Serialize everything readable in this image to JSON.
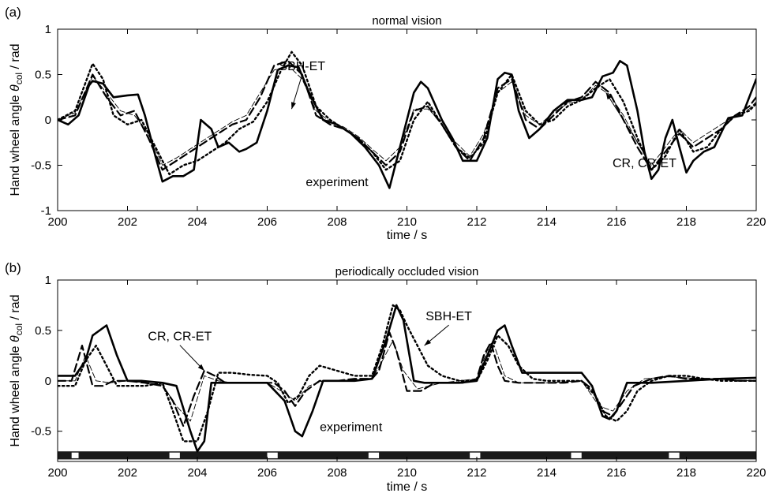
{
  "chart_data": [
    {
      "type": "line",
      "panel_label": "(a)",
      "title": "normal vision",
      "xlabel": "time / s",
      "ylabel": "Hand wheel angle",
      "ylabel_symbol": "θ",
      "ylabel_subscript": "col",
      "ylabel_unit": "/ rad",
      "xlim": [
        200,
        220
      ],
      "ylim": [
        -1,
        1
      ],
      "xticks": [
        200,
        202,
        204,
        206,
        208,
        210,
        212,
        214,
        216,
        218,
        220
      ],
      "yticks": [
        -1,
        -0.5,
        0,
        0.5,
        1
      ],
      "ytick_labels": [
        "-1",
        "-0.5",
        "0",
        "0.5",
        "1"
      ],
      "grid": false,
      "annotations": [
        {
          "text": "SBH-ET",
          "x": 207.0,
          "y": 0.55,
          "arrow_to": [
            206.7,
            0.12
          ]
        },
        {
          "text": "CR, CR-ET",
          "x": 216.8,
          "y": -0.52,
          "arrow_to": [
            215.7,
            0.3
          ]
        },
        {
          "text": "experiment",
          "x": 208.0,
          "y": -0.73
        }
      ],
      "series": [
        {
          "style": "solid",
          "x": [
            200,
            200.3,
            200.6,
            200.9,
            201.0,
            201.3,
            201.6,
            202.0,
            202.3,
            202.5,
            202.8,
            203.0,
            203.3,
            203.6,
            203.9,
            204.1,
            204.4,
            204.6,
            204.9,
            205.2,
            205.4,
            205.7,
            206.0,
            206.3,
            206.6,
            206.9,
            207.2,
            207.6,
            208.0,
            208.4,
            208.8,
            209.2,
            209.5,
            209.8,
            210.2,
            210.4,
            210.6,
            211.0,
            211.3,
            211.6,
            212.0,
            212.3,
            212.6,
            212.8,
            213.0,
            213.2,
            213.5,
            213.8,
            214.2,
            214.6,
            215.0,
            215.3,
            215.6,
            215.9,
            216.1,
            216.3,
            216.6,
            216.8,
            217.0,
            217.2,
            217.4,
            217.6,
            217.8,
            218.0,
            218.2,
            218.5,
            218.8,
            219.2,
            219.6,
            220.0
          ],
          "y": [
            0.0,
            -0.05,
            0.05,
            0.38,
            0.43,
            0.4,
            0.25,
            0.27,
            0.28,
            0.05,
            -0.4,
            -0.68,
            -0.62,
            -0.62,
            -0.55,
            0.0,
            -0.1,
            -0.3,
            -0.25,
            -0.35,
            -0.32,
            -0.25,
            0.1,
            0.55,
            0.6,
            0.58,
            0.3,
            0.0,
            -0.05,
            -0.15,
            -0.3,
            -0.5,
            -0.75,
            -0.3,
            0.3,
            0.42,
            0.35,
            0.0,
            -0.2,
            -0.45,
            -0.45,
            -0.2,
            0.45,
            0.52,
            0.5,
            0.1,
            -0.2,
            -0.1,
            0.1,
            0.22,
            0.22,
            0.25,
            0.48,
            0.52,
            0.65,
            0.6,
            0.1,
            -0.35,
            -0.65,
            -0.55,
            -0.2,
            0.0,
            -0.3,
            -0.58,
            -0.45,
            -0.35,
            -0.3,
            0.02,
            0.05,
            0.45
          ]
        },
        {
          "style": "dashed",
          "x": [
            200,
            200.5,
            201.0,
            201.4,
            201.8,
            202.2,
            202.6,
            203.0,
            203.4,
            203.8,
            204.2,
            204.6,
            205.0,
            205.4,
            205.8,
            206.2,
            206.6,
            207.0,
            207.4,
            207.8,
            208.2,
            208.6,
            209.0,
            209.4,
            209.8,
            210.2,
            210.6,
            211.0,
            211.4,
            211.8,
            212.2,
            212.6,
            213.0,
            213.4,
            213.8,
            214.2,
            214.6,
            215.0,
            215.4,
            215.8,
            216.2,
            216.6,
            217.0,
            217.4,
            217.8,
            218.2,
            218.6,
            219.0,
            219.4,
            219.8,
            220.0
          ],
          "y": [
            0.0,
            0.05,
            0.5,
            0.25,
            0.05,
            0.1,
            -0.2,
            -0.55,
            -0.45,
            -0.35,
            -0.25,
            -0.15,
            -0.05,
            0.0,
            0.25,
            0.6,
            0.65,
            0.5,
            0.05,
            -0.05,
            -0.1,
            -0.2,
            -0.35,
            -0.5,
            -0.35,
            0.1,
            0.15,
            -0.05,
            -0.3,
            -0.45,
            -0.2,
            0.35,
            0.45,
            0.0,
            -0.1,
            0.05,
            0.2,
            0.25,
            0.42,
            0.3,
            0.0,
            -0.3,
            -0.55,
            -0.35,
            -0.15,
            -0.3,
            -0.2,
            -0.1,
            0.05,
            0.15,
            0.25
          ]
        },
        {
          "style": "dotted",
          "x": [
            200,
            200.5,
            201.0,
            201.3,
            201.6,
            202.0,
            202.4,
            202.8,
            203.2,
            203.6,
            204.0,
            204.4,
            204.8,
            205.2,
            205.6,
            206.0,
            206.4,
            206.7,
            207.0,
            207.4,
            207.8,
            208.2,
            208.6,
            209.0,
            209.4,
            209.8,
            210.2,
            210.6,
            211.0,
            211.4,
            211.8,
            212.2,
            212.6,
            213.0,
            213.4,
            213.8,
            214.2,
            214.6,
            215.0,
            215.4,
            215.8,
            216.2,
            216.6,
            217.0,
            217.4,
            217.8,
            218.2,
            218.6,
            219.0,
            219.4,
            219.8,
            220.0
          ],
          "y": [
            0.0,
            0.1,
            0.62,
            0.45,
            0.05,
            -0.05,
            0.0,
            -0.3,
            -0.6,
            -0.5,
            -0.45,
            -0.35,
            -0.25,
            -0.1,
            -0.02,
            0.2,
            0.55,
            0.75,
            0.6,
            0.15,
            0.0,
            -0.1,
            -0.2,
            -0.35,
            -0.55,
            -0.45,
            0.0,
            0.2,
            -0.05,
            -0.3,
            -0.42,
            -0.25,
            0.3,
            0.5,
            0.1,
            -0.05,
            0.0,
            0.15,
            0.22,
            0.35,
            0.45,
            0.2,
            -0.2,
            -0.55,
            -0.4,
            -0.1,
            -0.35,
            -0.3,
            -0.1,
            0.05,
            0.1,
            0.18
          ]
        },
        {
          "style": "thin",
          "x": [
            200,
            200.5,
            201.0,
            201.4,
            201.8,
            202.2,
            202.6,
            203.0,
            203.4,
            203.8,
            204.2,
            204.6,
            205.0,
            205.4,
            205.8,
            206.2,
            206.6,
            207.0,
            207.4,
            207.8,
            208.2,
            208.6,
            209.0,
            209.4,
            209.8,
            210.2,
            210.6,
            211.0,
            211.4,
            211.8,
            212.2,
            212.6,
            213.0,
            213.4,
            213.8,
            214.2,
            214.6,
            215.0,
            215.4,
            215.8,
            216.2,
            216.6,
            217.0,
            217.4,
            217.8,
            218.2,
            218.6,
            219.0,
            219.4,
            219.8,
            220.0
          ],
          "y": [
            0.0,
            0.08,
            0.48,
            0.3,
            0.1,
            0.05,
            -0.15,
            -0.5,
            -0.42,
            -0.32,
            -0.22,
            -0.12,
            -0.02,
            0.05,
            0.3,
            0.55,
            0.6,
            0.45,
            0.1,
            -0.02,
            -0.08,
            -0.18,
            -0.32,
            -0.45,
            -0.3,
            0.12,
            0.12,
            -0.02,
            -0.25,
            -0.4,
            -0.15,
            0.3,
            0.42,
            0.05,
            -0.05,
            0.08,
            0.18,
            0.22,
            0.38,
            0.28,
            0.05,
            -0.25,
            -0.5,
            -0.3,
            -0.1,
            -0.25,
            -0.15,
            -0.05,
            0.05,
            0.12,
            0.2
          ]
        }
      ]
    },
    {
      "type": "line",
      "panel_label": "(b)",
      "title": "periodically occluded vision",
      "xlabel": "time / s",
      "ylabel": "Hand wheel angle",
      "ylabel_symbol": "θ",
      "ylabel_subscript": "col",
      "ylabel_unit": "/ rad",
      "xlim": [
        200,
        220
      ],
      "ylim": [
        -0.8,
        1
      ],
      "xticks": [
        200,
        202,
        204,
        206,
        208,
        210,
        212,
        214,
        216,
        218,
        220
      ],
      "yticks": [
        -0.5,
        0,
        0.5,
        1
      ],
      "ytick_labels": [
        "-0.5",
        "0",
        "0.5",
        "1"
      ],
      "grid": false,
      "occlusion_bar": {
        "y_range": [
          -0.78,
          -0.7
        ],
        "open_windows": [
          [
            200.4,
            200.6
          ],
          [
            203.2,
            203.5
          ],
          [
            206.0,
            206.3
          ],
          [
            208.9,
            209.2
          ],
          [
            211.8,
            212.1
          ],
          [
            214.7,
            215.0
          ],
          [
            217.5,
            217.8
          ]
        ]
      },
      "annotations": [
        {
          "text": "CR, CR-ET",
          "x": 203.5,
          "y": 0.4,
          "arrow_to": [
            204.2,
            0.1
          ]
        },
        {
          "text": "SBH-ET",
          "x": 211.2,
          "y": 0.6,
          "arrow_to": [
            210.5,
            0.35
          ]
        },
        {
          "text": "experiment",
          "x": 208.4,
          "y": -0.5
        }
      ],
      "series": [
        {
          "style": "solid",
          "x": [
            200,
            200.5,
            200.8,
            201.0,
            201.4,
            201.7,
            202.0,
            202.4,
            203.0,
            203.4,
            203.8,
            204.0,
            204.2,
            204.4,
            204.8,
            205.5,
            206.0,
            206.5,
            206.8,
            207.0,
            207.3,
            207.6,
            208.0,
            208.5,
            209.0,
            209.4,
            209.7,
            209.9,
            210.2,
            210.5,
            211.0,
            211.5,
            212.0,
            212.3,
            212.6,
            212.8,
            213.0,
            213.3,
            214.0,
            214.5,
            215.0,
            215.3,
            215.6,
            215.8,
            216.0,
            216.3,
            217.0,
            218.0,
            219.0,
            220.0
          ],
          "y": [
            0.05,
            0.05,
            0.2,
            0.45,
            0.55,
            0.25,
            0.0,
            0.0,
            -0.02,
            -0.05,
            -0.5,
            -0.7,
            -0.6,
            -0.02,
            -0.02,
            -0.02,
            -0.02,
            -0.2,
            -0.5,
            -0.55,
            -0.3,
            0.0,
            0.0,
            0.0,
            0.02,
            0.4,
            0.75,
            0.6,
            0.0,
            -0.02,
            -0.02,
            -0.02,
            0.0,
            0.25,
            0.5,
            0.55,
            0.35,
            0.08,
            0.08,
            0.08,
            0.08,
            -0.05,
            -0.35,
            -0.38,
            -0.3,
            -0.02,
            -0.02,
            0.0,
            0.02,
            0.03
          ]
        },
        {
          "style": "dashed",
          "x": [
            200,
            200.4,
            200.7,
            201.0,
            201.3,
            201.6,
            202.0,
            202.5,
            203.0,
            203.3,
            203.6,
            203.9,
            204.2,
            204.5,
            204.8,
            205.2,
            205.8,
            206.2,
            206.5,
            206.8,
            207.1,
            207.5,
            208.0,
            208.5,
            209.0,
            209.2,
            209.5,
            209.7,
            210.0,
            210.4,
            210.8,
            211.2,
            211.6,
            212.0,
            212.2,
            212.4,
            212.6,
            212.8,
            213.2,
            213.8,
            214.5,
            215.0,
            215.3,
            215.6,
            215.9,
            216.2,
            216.5,
            217.0,
            217.5,
            218.0,
            218.5,
            219.0,
            219.5,
            220.0
          ],
          "y": [
            0.0,
            0.0,
            0.35,
            -0.05,
            -0.05,
            0.0,
            0.0,
            -0.02,
            -0.05,
            -0.2,
            -0.45,
            -0.15,
            0.1,
            0.05,
            -0.02,
            -0.02,
            -0.02,
            -0.02,
            -0.1,
            -0.25,
            -0.1,
            0.0,
            0.0,
            0.02,
            0.02,
            0.1,
            0.48,
            0.3,
            -0.1,
            -0.1,
            -0.02,
            -0.02,
            -0.02,
            0.02,
            0.25,
            0.38,
            0.15,
            0.0,
            -0.02,
            -0.02,
            -0.02,
            0.0,
            -0.08,
            -0.3,
            -0.35,
            -0.2,
            -0.05,
            0.02,
            0.05,
            0.02,
            0.02,
            0.02,
            0.0,
            0.0
          ]
        },
        {
          "style": "dotted",
          "x": [
            200,
            200.5,
            200.8,
            201.1,
            201.4,
            201.7,
            202.0,
            202.5,
            203.0,
            203.3,
            203.6,
            204.0,
            204.3,
            204.6,
            205.0,
            205.5,
            206.0,
            206.3,
            206.6,
            206.9,
            207.2,
            207.5,
            208.0,
            208.5,
            209.0,
            209.3,
            209.6,
            209.8,
            210.0,
            210.3,
            210.6,
            211.0,
            211.5,
            212.0,
            212.3,
            212.6,
            212.9,
            213.2,
            213.6,
            214.0,
            214.5,
            215.0,
            215.4,
            215.7,
            216.0,
            216.3,
            216.6,
            217.0,
            217.5,
            218.0,
            218.5,
            219.0,
            219.5,
            220.0
          ],
          "y": [
            -0.05,
            -0.05,
            0.2,
            0.35,
            0.15,
            -0.05,
            -0.05,
            -0.05,
            -0.02,
            -0.3,
            -0.6,
            -0.6,
            -0.3,
            0.08,
            0.08,
            0.06,
            0.05,
            -0.02,
            -0.22,
            -0.15,
            0.05,
            0.15,
            0.1,
            0.05,
            0.05,
            0.35,
            0.75,
            0.7,
            0.55,
            0.35,
            0.15,
            0.05,
            0.0,
            0.0,
            0.2,
            0.45,
            0.35,
            0.15,
            0.02,
            0.0,
            0.0,
            0.0,
            -0.15,
            -0.35,
            -0.4,
            -0.3,
            -0.1,
            0.0,
            0.05,
            0.05,
            0.02,
            0.0,
            0.0,
            0.0
          ]
        },
        {
          "style": "thin",
          "x": [
            200,
            200.5,
            200.8,
            201.1,
            201.5,
            202.0,
            203.0,
            203.4,
            203.8,
            204.2,
            204.6,
            205.0,
            206.0,
            206.5,
            206.8,
            207.2,
            207.6,
            208.0,
            209.0,
            209.3,
            209.6,
            209.9,
            210.3,
            211.0,
            212.0,
            212.3,
            212.5,
            212.8,
            213.2,
            214.0,
            215.0,
            215.5,
            215.9,
            216.3,
            216.8,
            217.5,
            218.5,
            220.0
          ],
          "y": [
            0.0,
            0.0,
            0.25,
            0.0,
            -0.02,
            0.0,
            -0.04,
            -0.25,
            -0.4,
            0.05,
            0.0,
            -0.02,
            -0.02,
            -0.12,
            -0.2,
            -0.05,
            0.0,
            0.0,
            0.02,
            0.2,
            0.4,
            0.1,
            -0.08,
            -0.02,
            0.02,
            0.3,
            0.35,
            0.05,
            -0.02,
            -0.02,
            0.0,
            -0.25,
            -0.3,
            -0.1,
            0.02,
            0.04,
            0.02,
            0.0
          ]
        }
      ]
    }
  ]
}
